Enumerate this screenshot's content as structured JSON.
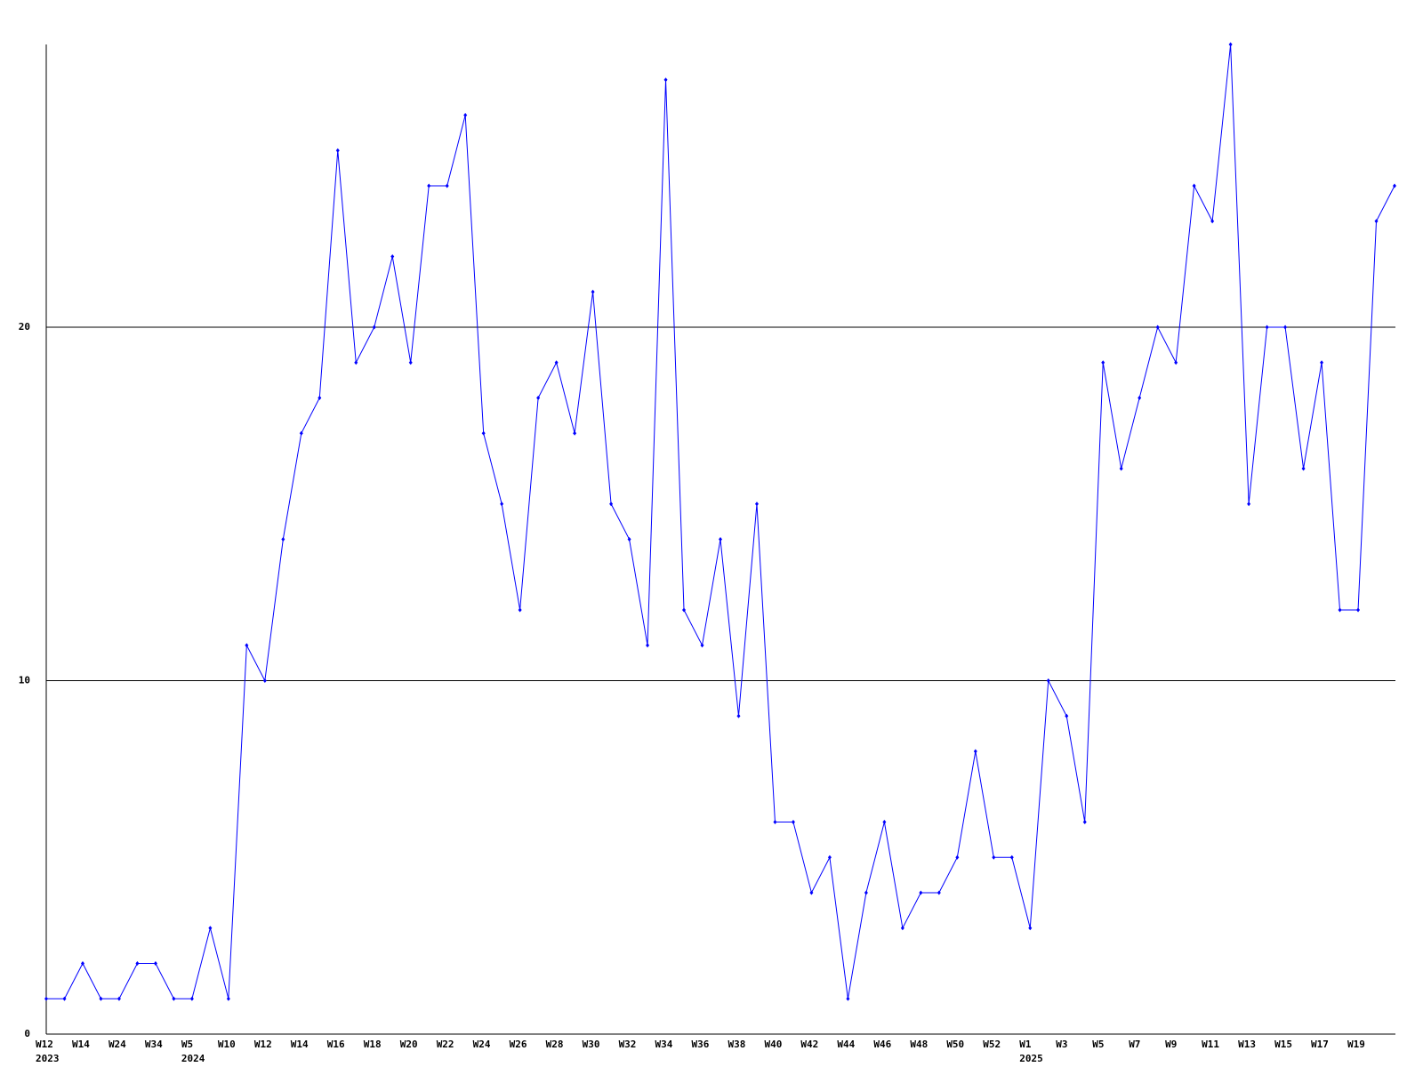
{
  "chart_data": {
    "type": "line",
    "categories": [
      "W12",
      null,
      "W14",
      null,
      "W24",
      null,
      "W34",
      null,
      "W5",
      null,
      "W10",
      null,
      "W12",
      null,
      "W14",
      null,
      "W16",
      null,
      "W18",
      null,
      "W20",
      null,
      "W22",
      null,
      "W24",
      null,
      "W26",
      null,
      "W28",
      null,
      "W30",
      null,
      "W32",
      null,
      "W34",
      null,
      "W36",
      null,
      "W38",
      null,
      "W40",
      null,
      "W42",
      null,
      "W44",
      null,
      "W46",
      null,
      "W48",
      null,
      "W50",
      null,
      "W52",
      null,
      "W1",
      null,
      "W3",
      null,
      "W5",
      null,
      "W7",
      null,
      "W9",
      null,
      "W11",
      null,
      "W13",
      null,
      "W15",
      null,
      "W17",
      null,
      "W19",
      null,
      null
    ],
    "year_labels": [
      "2023",
      null,
      null,
      null,
      null,
      null,
      null,
      null,
      "2024",
      null,
      null,
      null,
      null,
      null,
      null,
      null,
      null,
      null,
      null,
      null,
      null,
      null,
      null,
      null,
      null,
      null,
      null,
      null,
      null,
      null,
      null,
      null,
      null,
      null,
      null,
      null,
      null,
      null,
      null,
      null,
      null,
      null,
      null,
      null,
      null,
      null,
      null,
      null,
      null,
      null,
      null,
      null,
      null,
      null,
      "2025",
      null,
      null,
      null,
      null,
      null,
      null,
      null,
      null,
      null,
      null,
      null,
      null,
      null,
      null,
      null,
      null,
      null,
      null,
      null,
      null
    ],
    "series": [
      {
        "color": "#0000ff",
        "values": [
          1,
          1,
          2,
          1,
          1,
          2,
          2,
          1,
          1,
          3,
          1,
          11,
          10,
          14,
          17,
          18,
          25,
          19,
          20,
          22,
          19,
          24,
          24,
          26,
          17,
          15,
          12,
          18,
          19,
          17,
          21,
          15,
          14,
          11,
          27,
          12,
          11,
          14,
          9,
          15,
          6,
          6,
          4,
          5,
          1,
          4,
          6,
          3,
          4,
          4,
          5,
          8,
          5,
          5,
          3,
          10,
          9,
          6,
          19,
          16,
          18,
          20,
          19,
          24,
          23,
          28,
          15,
          20,
          20,
          16,
          19,
          12,
          12,
          23,
          24
        ]
      }
    ],
    "ylim": [
      0,
      28
    ],
    "yticks": [
      0,
      10,
      20
    ],
    "grid": true
  }
}
